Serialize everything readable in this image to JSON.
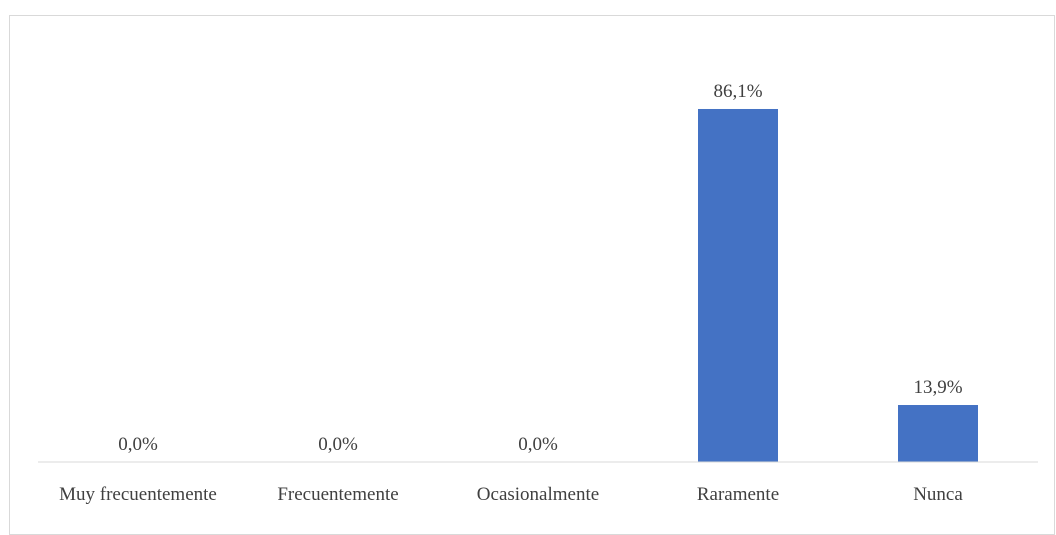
{
  "chart_data": {
    "type": "bar",
    "categories": [
      "Muy frecuentemente",
      "Frecuentemente",
      "Ocasionalmente",
      "Raramente",
      "Nunca"
    ],
    "values": [
      0.0,
      0.0,
      0.0,
      86.1,
      13.9
    ],
    "data_labels": [
      "0,0%",
      "0,0%",
      "0,0%",
      "86,1%",
      "13,9%"
    ],
    "value_unit": "%",
    "ylim": [
      0,
      100
    ],
    "grid": false,
    "legend": "none",
    "bar_color": "#4472c4",
    "axis_color": "#d9d9d9",
    "text_color": "#404040"
  }
}
